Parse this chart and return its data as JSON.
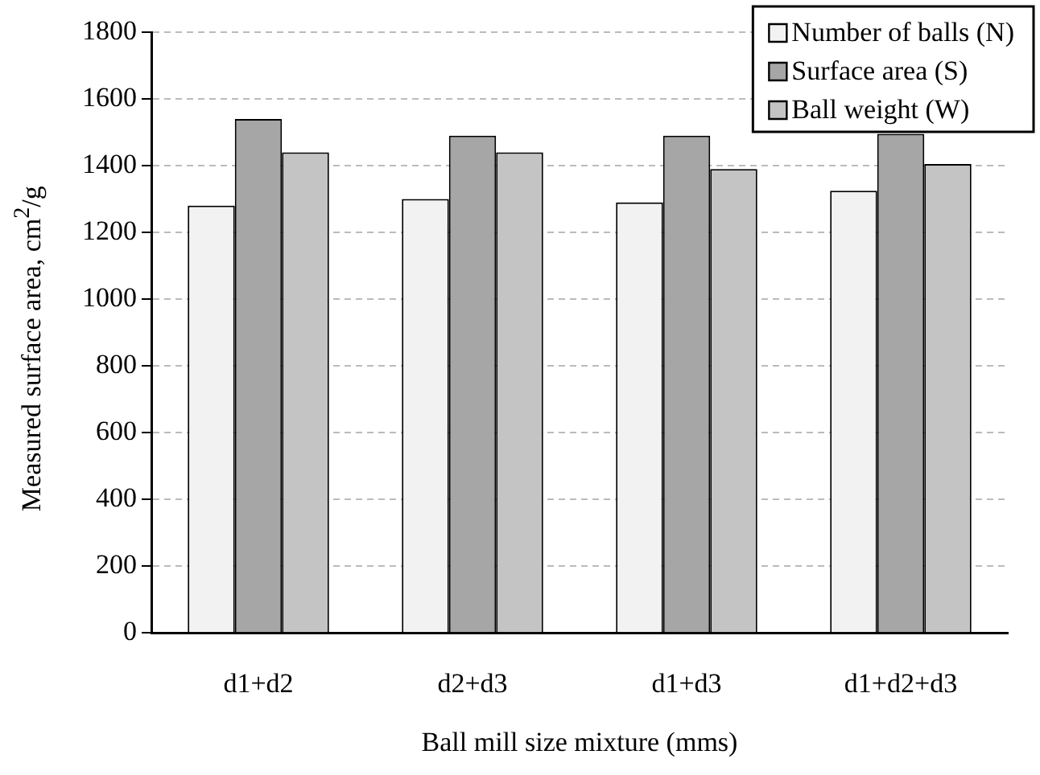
{
  "chart_data": {
    "type": "bar",
    "xlabel": "Ball mill size mixture (mms)",
    "ylabel": "Measured surface area, cm$^{2}$/g",
    "categories": [
      "d1+d2",
      "d2+d3",
      "d1+d3",
      "d1+d2+d3"
    ],
    "series": [
      {
        "name": "Number of balls (N)",
        "color": "#f2f2f2",
        "values": [
          1280,
          1300,
          1290,
          1325
        ]
      },
      {
        "name": "Surface area (S)",
        "color": "#a6a6a6",
        "values": [
          1540,
          1490,
          1490,
          1495
        ]
      },
      {
        "name": "Ball weight (W)",
        "color": "#c4c4c4",
        "values": [
          1440,
          1440,
          1390,
          1405
        ]
      }
    ],
    "ylim": [
      0,
      1800
    ],
    "yticks": [
      0,
      200,
      400,
      600,
      800,
      1000,
      1200,
      1400,
      1600,
      1800
    ],
    "grid": "y",
    "legend": "top right",
    "line_style": "dashed"
  }
}
